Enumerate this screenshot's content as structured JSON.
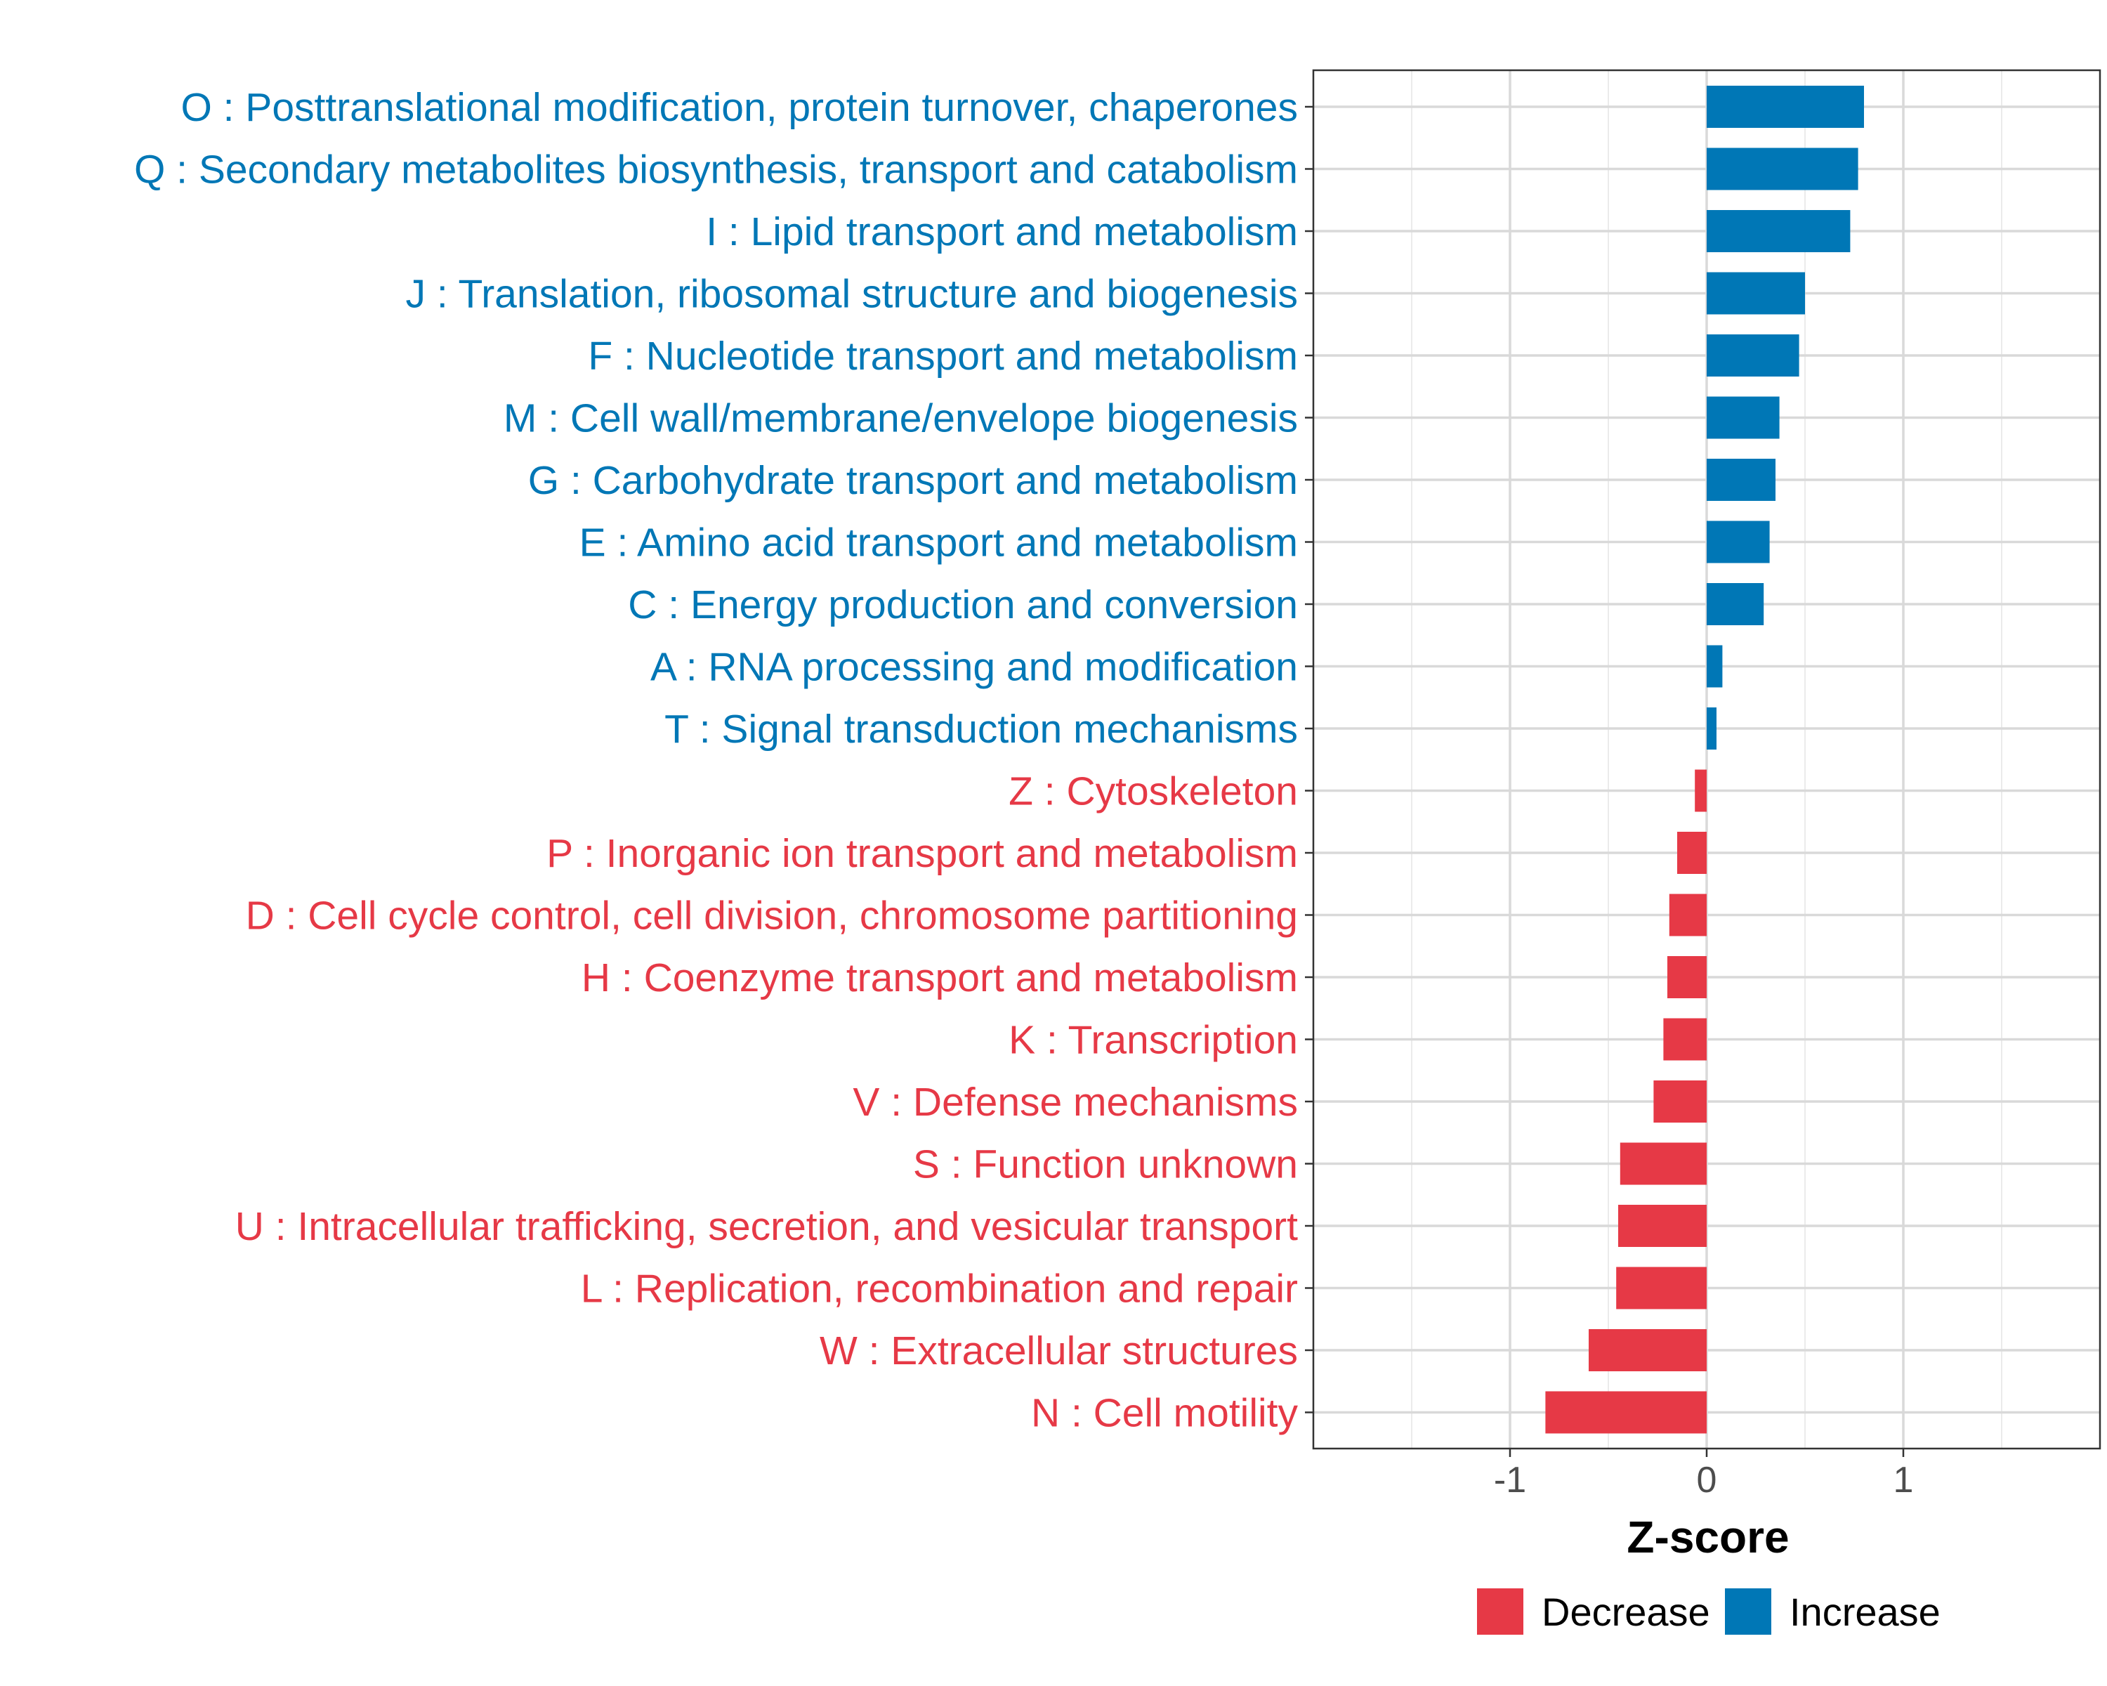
{
  "chart_data": {
    "type": "bar",
    "orientation": "horizontal",
    "xlabel": "Z-score",
    "xlim": [
      -2,
      2
    ],
    "xticks": [
      -1,
      0,
      1
    ],
    "xtick_labels": [
      "-1",
      "0",
      "1"
    ],
    "grid": true,
    "legend_position": "bottom",
    "legend": [
      {
        "name": "Decrease",
        "color": "#E63946"
      },
      {
        "name": "Increase",
        "color": "#0077B6"
      }
    ],
    "categories": [
      "O : Posttranslational modification, protein turnover, chaperones",
      "Q : Secondary metabolites biosynthesis, transport and catabolism",
      "I : Lipid transport and metabolism",
      "J : Translation, ribosomal structure and biogenesis",
      "F : Nucleotide transport and metabolism",
      "M : Cell wall/membrane/envelope biogenesis",
      "G : Carbohydrate transport and metabolism",
      "E : Amino acid transport and metabolism",
      "C : Energy production and conversion",
      "A : RNA processing and modification",
      "T : Signal transduction mechanisms",
      "Z : Cytoskeleton",
      "P : Inorganic ion transport and metabolism",
      "D : Cell cycle control, cell division, chromosome partitioning",
      "H : Coenzyme transport and metabolism",
      "K : Transcription",
      "V : Defense mechanisms",
      "S : Function unknown",
      "U : Intracellular trafficking, secretion, and vesicular transport",
      "L : Replication, recombination and repair",
      "W : Extracellular structures",
      "N : Cell motility"
    ],
    "values": [
      0.8,
      0.77,
      0.73,
      0.5,
      0.47,
      0.37,
      0.35,
      0.32,
      0.29,
      0.08,
      0.05,
      -0.06,
      -0.15,
      -0.19,
      -0.2,
      -0.22,
      -0.27,
      -0.44,
      -0.45,
      -0.46,
      -0.6,
      -0.82
    ],
    "groups": [
      "Increase",
      "Increase",
      "Increase",
      "Increase",
      "Increase",
      "Increase",
      "Increase",
      "Increase",
      "Increase",
      "Increase",
      "Increase",
      "Decrease",
      "Decrease",
      "Decrease",
      "Decrease",
      "Decrease",
      "Decrease",
      "Decrease",
      "Decrease",
      "Decrease",
      "Decrease",
      "Decrease"
    ]
  }
}
